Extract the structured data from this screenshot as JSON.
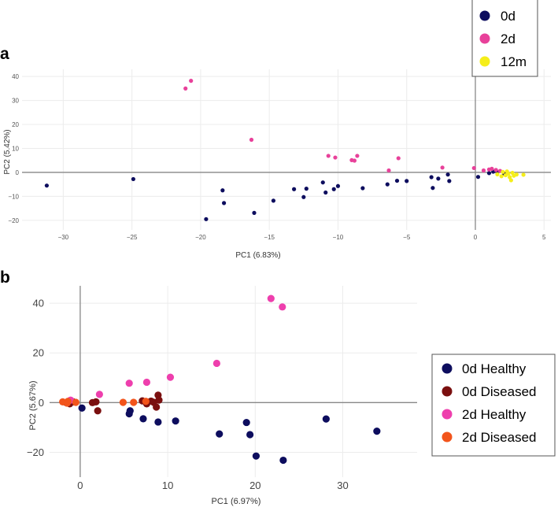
{
  "chart_data": [
    {
      "panel_label": "a",
      "type": "scatter",
      "xlabel": "PC1 (6.83%)",
      "ylabel": "PC2 (5.42%)",
      "xlim": [
        -33,
        5.5
      ],
      "ylim": [
        -24,
        43
      ],
      "xticks": [
        -30,
        -25,
        -20,
        -15,
        -10,
        -5,
        0,
        5
      ],
      "yticks": [
        -20,
        -10,
        0,
        10,
        20,
        30,
        40
      ],
      "grid": true,
      "legend_position": "top-right",
      "series": [
        {
          "name": "0d",
          "color": "#0d0d5e",
          "points": [
            [
              -31.2,
              -5.5
            ],
            [
              -24.9,
              -2.8
            ],
            [
              -19.6,
              -19.5
            ],
            [
              -18.4,
              -7.5
            ],
            [
              -18.3,
              -12.8
            ],
            [
              -16.1,
              -16.9
            ],
            [
              -14.7,
              -11.8
            ],
            [
              -13.2,
              -7.0
            ],
            [
              -12.5,
              -10.3
            ],
            [
              -12.3,
              -6.8
            ],
            [
              -11.1,
              -4.2
            ],
            [
              -10.9,
              -8.4
            ],
            [
              -10.3,
              -7.0
            ],
            [
              -10.0,
              -5.7
            ],
            [
              -8.2,
              -6.6
            ],
            [
              -6.4,
              -5.0
            ],
            [
              -5.7,
              -3.5
            ],
            [
              -5.0,
              -3.6
            ],
            [
              -3.2,
              -2.0
            ],
            [
              -3.1,
              -6.5
            ],
            [
              -2.7,
              -2.6
            ],
            [
              -2.0,
              -0.9
            ],
            [
              -1.9,
              -3.6
            ],
            [
              0.2,
              -1.9
            ],
            [
              1.0,
              -0.3
            ],
            [
              1.3,
              0.3
            ],
            [
              1.6,
              0.1
            ],
            [
              2.1,
              -0.5
            ]
          ]
        },
        {
          "name": "2d",
          "color": "#e8419a",
          "points": [
            [
              -21.1,
              35.0
            ],
            [
              -20.7,
              38.2
            ],
            [
              -16.3,
              13.6
            ],
            [
              -10.7,
              6.9
            ],
            [
              -10.2,
              6.2
            ],
            [
              -9.0,
              5.1
            ],
            [
              -8.8,
              4.9
            ],
            [
              -8.6,
              6.9
            ],
            [
              -6.3,
              0.8
            ],
            [
              -5.6,
              5.9
            ],
            [
              -2.4,
              2.0
            ],
            [
              -0.1,
              1.8
            ],
            [
              0.6,
              0.8
            ],
            [
              1.0,
              1.2
            ],
            [
              1.2,
              1.5
            ],
            [
              1.5,
              1.0
            ],
            [
              1.8,
              0.6
            ]
          ]
        },
        {
          "name": "12m",
          "color": "#f5ee1a",
          "points": [
            [
              1.6,
              -0.8
            ],
            [
              1.9,
              -1.6
            ],
            [
              2.0,
              0.2
            ],
            [
              2.2,
              -1.2
            ],
            [
              2.4,
              -0.5
            ],
            [
              2.5,
              -2.0
            ],
            [
              2.6,
              -3.3
            ],
            [
              2.7,
              -0.2
            ],
            [
              2.8,
              -1.4
            ],
            [
              3.0,
              -0.9
            ],
            [
              3.5,
              -1.0
            ],
            [
              2.3,
              0.4
            ]
          ]
        }
      ]
    },
    {
      "panel_label": "b",
      "type": "scatter",
      "xlabel": "PC1 (6.97%)",
      "ylabel": "PC2 (5.67%)",
      "xlim": [
        -3.5,
        38.5
      ],
      "ylim": [
        -30,
        47
      ],
      "xticks": [
        0,
        10,
        20,
        30
      ],
      "yticks": [
        -20,
        0,
        20,
        40
      ],
      "grid": true,
      "legend_position": "right",
      "series": [
        {
          "name": "0d Healthy",
          "color": "#0d0d5e",
          "points": [
            [
              0.2,
              -2.2
            ],
            [
              5.6,
              -4.5
            ],
            [
              5.7,
              -3.3
            ],
            [
              7.2,
              -6.5
            ],
            [
              8.9,
              -7.8
            ],
            [
              10.9,
              -7.4
            ],
            [
              15.9,
              -12.6
            ],
            [
              19.0,
              -8.0
            ],
            [
              19.4,
              -12.9
            ],
            [
              20.1,
              -21.5
            ],
            [
              23.2,
              -23.2
            ],
            [
              28.1,
              -6.6
            ],
            [
              33.9,
              -11.5
            ]
          ]
        },
        {
          "name": "0d Diseased",
          "color": "#7a0f0f",
          "points": [
            [
              -1.6,
              0.0
            ],
            [
              -1.2,
              -0.5
            ],
            [
              -0.8,
              0.3
            ],
            [
              1.4,
              0.0
            ],
            [
              1.8,
              0.3
            ],
            [
              2.0,
              -3.3
            ],
            [
              7.1,
              0.7
            ],
            [
              7.6,
              -0.5
            ],
            [
              8.1,
              0.6
            ],
            [
              8.4,
              0.1
            ],
            [
              8.7,
              -1.8
            ],
            [
              8.9,
              3.0
            ],
            [
              9.0,
              1.0
            ]
          ]
        },
        {
          "name": "2d Healthy",
          "color": "#ee3fad",
          "points": [
            [
              -1.1,
              1.0
            ],
            [
              2.2,
              3.3
            ],
            [
              5.6,
              7.8
            ],
            [
              7.6,
              8.2
            ],
            [
              10.3,
              10.2
            ],
            [
              15.6,
              15.8
            ],
            [
              21.8,
              41.9
            ],
            [
              23.1,
              38.5
            ]
          ]
        },
        {
          "name": "2d Diseased",
          "color": "#f2541b",
          "points": [
            [
              -2.0,
              0.3
            ],
            [
              -1.5,
              -0.2
            ],
            [
              -1.4,
              0.5
            ],
            [
              -0.5,
              0.1
            ],
            [
              4.9,
              0.1
            ],
            [
              6.1,
              0.1
            ],
            [
              7.5,
              0.5
            ]
          ]
        }
      ]
    }
  ]
}
